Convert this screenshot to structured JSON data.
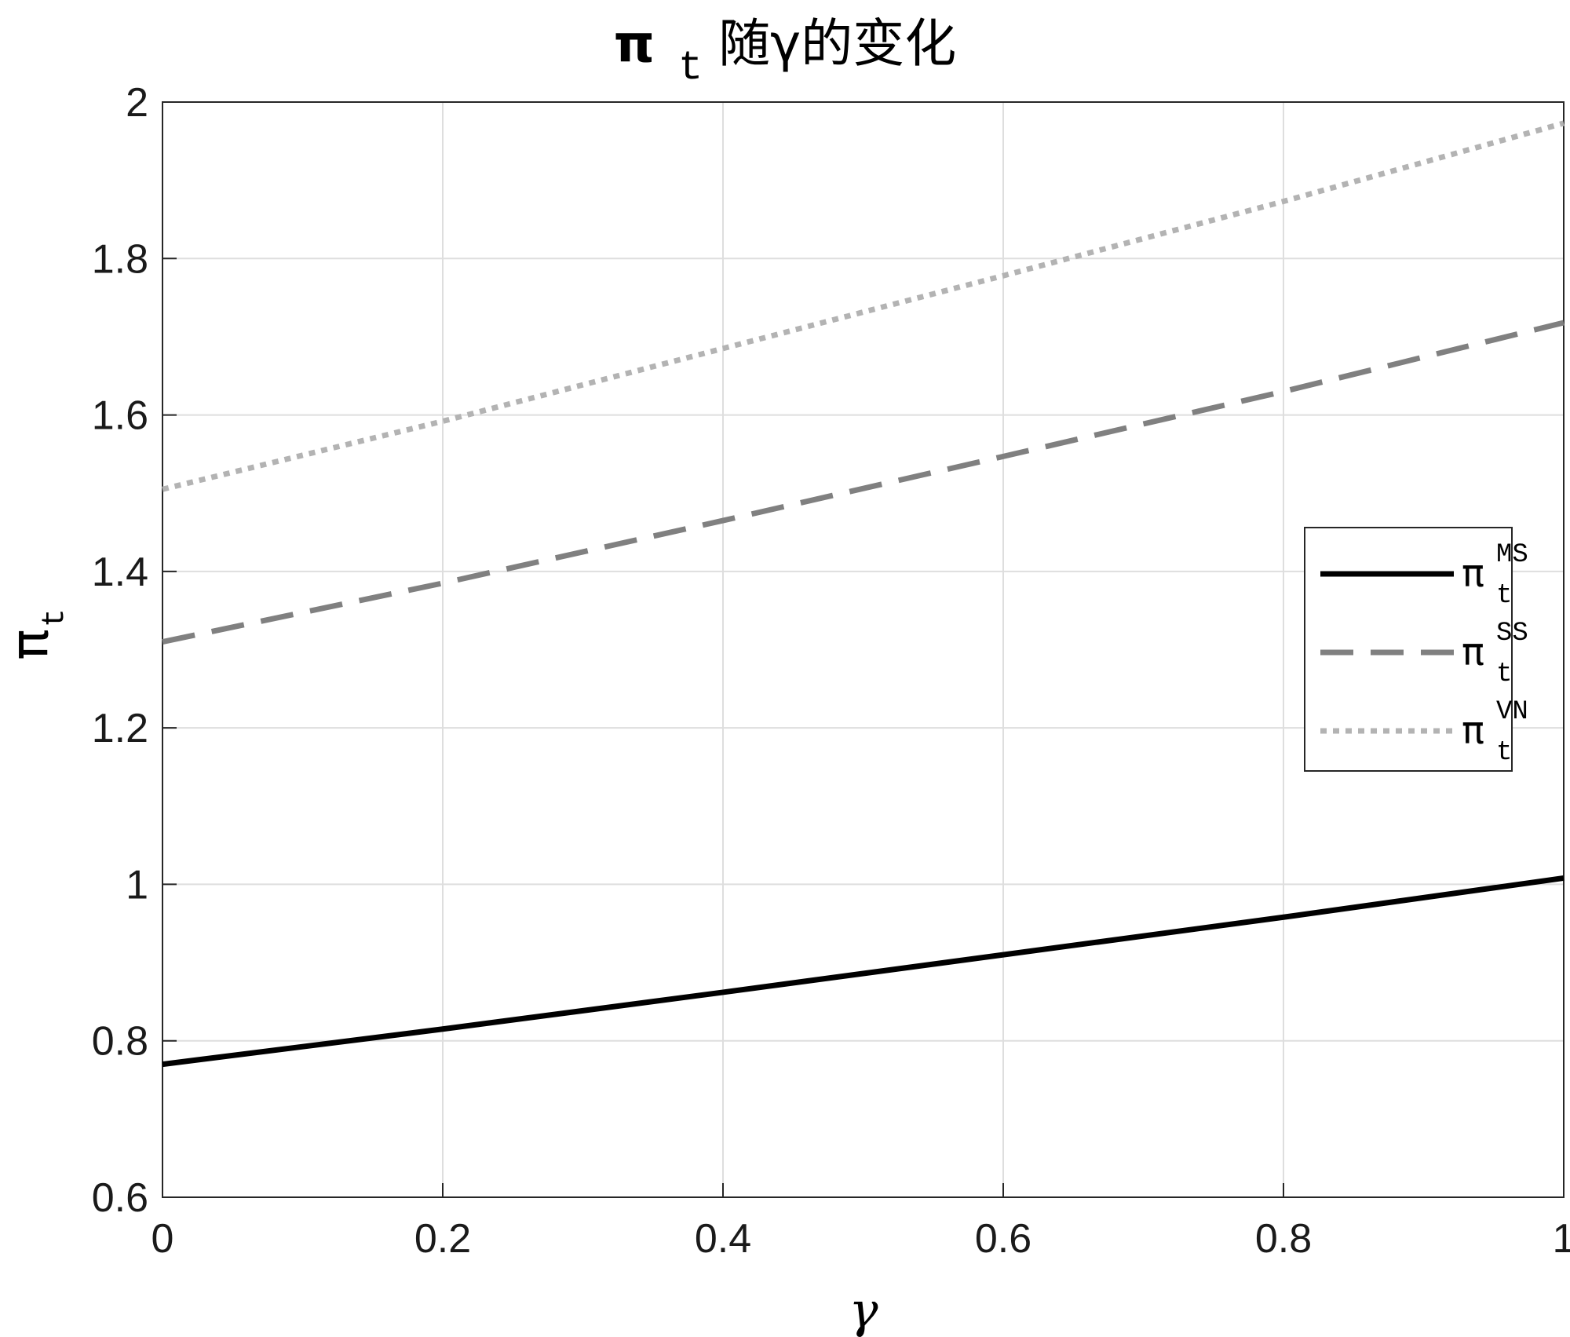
{
  "chart_data": {
    "type": "line",
    "title": {
      "main": "π",
      "sub": "t",
      "rest": "随γ的变化"
    },
    "xlabel": "γ",
    "ylabel": {
      "main": "π",
      "sub": "t"
    },
    "xlim": [
      0,
      1
    ],
    "ylim": [
      0.6,
      2
    ],
    "xticks": [
      0,
      0.2,
      0.4,
      0.6,
      0.8,
      1
    ],
    "xtick_labels": [
      "0",
      "0.2",
      "0.4",
      "0.6",
      "0.8",
      "1"
    ],
    "yticks": [
      0.6,
      0.8,
      1,
      1.2,
      1.4,
      1.6,
      1.8,
      2
    ],
    "ytick_labels": [
      "0.6",
      "0.8",
      "1",
      "1.2",
      "1.4",
      "1.6",
      "1.8",
      "2"
    ],
    "grid": true,
    "legend_position": "right",
    "x": [
      0,
      0.2,
      0.4,
      0.6,
      0.8,
      1
    ],
    "series": [
      {
        "id": "ms",
        "legend": {
          "main": "π",
          "sup": "MS",
          "sub": "t"
        },
        "values": [
          0.77,
          0.815,
          0.862,
          0.91,
          0.958,
          1.008
        ],
        "color": "#000000",
        "style": "solid"
      },
      {
        "id": "ss",
        "legend": {
          "main": "π",
          "sup": "SS",
          "sub": "t"
        },
        "values": [
          1.31,
          1.385,
          1.465,
          1.547,
          1.63,
          1.718
        ],
        "color": "#808080",
        "style": "dashed"
      },
      {
        "id": "vn",
        "legend": {
          "main": "π",
          "sup": "VN",
          "sub": "t"
        },
        "values": [
          1.505,
          1.592,
          1.685,
          1.778,
          1.873,
          1.973
        ],
        "color": "#b3b3b3",
        "style": "dotted"
      }
    ]
  }
}
